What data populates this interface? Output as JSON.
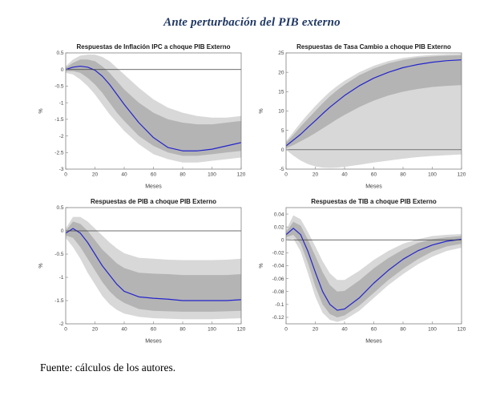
{
  "page": {
    "title": "Ante perturbación del PIB externo",
    "source_note": "Fuente: cálculos de los autores."
  },
  "colors": {
    "title_text": "#203864",
    "body_text": "#000000",
    "chart_title": "#1a1a1a",
    "tick_text": "#404040",
    "axis": "#808080",
    "zero_line": "#3c3c3c",
    "line": "#2424cc",
    "band_outer": "#d8d8d8",
    "band_inner": "#b4b4b4",
    "background": "#ffffff"
  },
  "chart_data": [
    {
      "type": "area",
      "name": "inflacion-ipc",
      "title": "Respuestas de Inflación IPC a choque PIB Externo",
      "xlabel": "Meses",
      "ylabel": "%",
      "xlim": [
        0,
        120
      ],
      "ylim": [
        -3,
        0.5
      ],
      "xticks": [
        0,
        20,
        40,
        60,
        80,
        100,
        120
      ],
      "yticks": [
        -3,
        -2.5,
        -2,
        -1.5,
        -1,
        -0.5,
        0,
        0.5
      ],
      "grid": false,
      "legend": false,
      "x": [
        0,
        5,
        10,
        15,
        20,
        25,
        30,
        35,
        40,
        50,
        60,
        70,
        80,
        90,
        100,
        110,
        120
      ],
      "series": [
        {
          "name": "banda-confianza-externa",
          "role": "outer_band",
          "upper": [
            0.1,
            0.3,
            0.42,
            0.45,
            0.45,
            0.38,
            0.25,
            0.05,
            -0.15,
            -0.55,
            -0.9,
            -1.15,
            -1.3,
            -1.4,
            -1.45,
            -1.45,
            -1.4
          ],
          "lower": [
            -0.1,
            -0.15,
            -0.3,
            -0.5,
            -0.75,
            -1.05,
            -1.35,
            -1.6,
            -1.85,
            -2.25,
            -2.55,
            -2.7,
            -2.8,
            -2.8,
            -2.75,
            -2.7,
            -2.65
          ]
        },
        {
          "name": "banda-confianza-interna",
          "role": "inner_band",
          "upper": [
            0.05,
            0.2,
            0.3,
            0.3,
            0.25,
            0.1,
            -0.1,
            -0.35,
            -0.6,
            -1.0,
            -1.3,
            -1.5,
            -1.6,
            -1.65,
            -1.65,
            -1.6,
            -1.55
          ],
          "lower": [
            -0.05,
            -0.05,
            -0.1,
            -0.25,
            -0.45,
            -0.7,
            -1.0,
            -1.3,
            -1.55,
            -2.0,
            -2.3,
            -2.5,
            -2.6,
            -2.6,
            -2.55,
            -2.5,
            -2.45
          ]
        },
        {
          "name": "respuesta-mediana",
          "role": "median",
          "values": [
            0,
            0.07,
            0.1,
            0.07,
            -0.02,
            -0.2,
            -0.45,
            -0.75,
            -1.05,
            -1.6,
            -2.05,
            -2.35,
            -2.45,
            -2.45,
            -2.4,
            -2.3,
            -2.2
          ]
        }
      ]
    },
    {
      "type": "area",
      "name": "tasa-cambio",
      "title": "Respuestas de Tasa Cambio a choque PIB Externo",
      "xlabel": "Meses",
      "ylabel": "%",
      "xlim": [
        0,
        120
      ],
      "ylim": [
        -5,
        25
      ],
      "xticks": [
        0,
        20,
        40,
        60,
        80,
        100,
        120
      ],
      "yticks": [
        -5,
        0,
        5,
        10,
        15,
        20,
        25
      ],
      "grid": false,
      "legend": false,
      "x": [
        0,
        5,
        10,
        15,
        20,
        25,
        30,
        35,
        40,
        50,
        60,
        70,
        80,
        90,
        100,
        110,
        120
      ],
      "series": [
        {
          "name": "banda-confianza-externa",
          "role": "outer_band",
          "upper": [
            2.2,
            4.6,
            7.0,
            9.2,
            11.3,
            13.2,
            15.0,
            16.5,
            17.8,
            20.0,
            21.7,
            22.9,
            23.7,
            24.2,
            24.5,
            24.7,
            24.8
          ],
          "lower": [
            0.0,
            -1.5,
            -2.8,
            -3.7,
            -4.3,
            -4.6,
            -4.7,
            -4.6,
            -4.4,
            -3.9,
            -3.3,
            -2.8,
            -2.3,
            -1.9,
            -1.6,
            -1.4,
            -1.2
          ]
        },
        {
          "name": "banda-confianza-interna",
          "role": "inner_band",
          "upper": [
            1.8,
            3.8,
            6.0,
            8.0,
            10.0,
            12.0,
            13.8,
            15.4,
            16.8,
            19.2,
            21.0,
            22.3,
            23.2,
            23.8,
            24.1,
            24.3,
            24.4
          ],
          "lower": [
            0.4,
            1.2,
            2.2,
            3.2,
            4.3,
            5.5,
            6.7,
            7.9,
            9.0,
            11.0,
            12.7,
            14.0,
            15.0,
            15.7,
            16.2,
            16.5,
            16.7
          ]
        },
        {
          "name": "respuesta-mediana",
          "role": "median",
          "values": [
            1.0,
            2.5,
            4.0,
            5.8,
            7.5,
            9.3,
            11.0,
            12.5,
            14.0,
            16.5,
            18.5,
            20.0,
            21.2,
            22.0,
            22.6,
            23.0,
            23.2
          ]
        }
      ]
    },
    {
      "type": "area",
      "name": "pib",
      "title": "Respuestas de PIB a choque PIB Externo",
      "xlabel": "Meses",
      "ylabel": "%",
      "xlim": [
        0,
        120
      ],
      "ylim": [
        -2,
        0.5
      ],
      "xticks": [
        0,
        20,
        40,
        60,
        80,
        100,
        120
      ],
      "yticks": [
        -2,
        -1.5,
        -1,
        -0.5,
        0,
        0.5
      ],
      "grid": false,
      "legend": false,
      "x": [
        0,
        5,
        10,
        15,
        20,
        25,
        30,
        35,
        40,
        50,
        60,
        70,
        80,
        90,
        100,
        110,
        120
      ],
      "series": [
        {
          "name": "banda-confianza-externa",
          "role": "outer_band",
          "upper": [
            0.05,
            0.3,
            0.3,
            0.2,
            0.05,
            -0.1,
            -0.25,
            -0.38,
            -0.48,
            -0.58,
            -0.6,
            -0.62,
            -0.63,
            -0.63,
            -0.63,
            -0.62,
            -0.6
          ],
          "lower": [
            -0.15,
            -0.35,
            -0.6,
            -0.9,
            -1.15,
            -1.4,
            -1.58,
            -1.7,
            -1.78,
            -1.85,
            -1.88,
            -1.89,
            -1.9,
            -1.9,
            -1.9,
            -1.89,
            -1.88
          ]
        },
        {
          "name": "banda-confianza-interna",
          "role": "inner_band",
          "upper": [
            0.0,
            0.2,
            0.15,
            0.0,
            -0.2,
            -0.4,
            -0.55,
            -0.7,
            -0.8,
            -0.9,
            -0.92,
            -0.93,
            -0.95,
            -0.95,
            -0.95,
            -0.95,
            -0.93
          ],
          "lower": [
            -0.1,
            -0.15,
            -0.35,
            -0.6,
            -0.85,
            -1.1,
            -1.3,
            -1.45,
            -1.55,
            -1.68,
            -1.72,
            -1.73,
            -1.74,
            -1.74,
            -1.74,
            -1.73,
            -1.72
          ]
        },
        {
          "name": "respuesta-mediana",
          "role": "median",
          "values": [
            -0.05,
            0.05,
            -0.05,
            -0.25,
            -0.5,
            -0.75,
            -0.95,
            -1.15,
            -1.3,
            -1.42,
            -1.45,
            -1.47,
            -1.5,
            -1.5,
            -1.5,
            -1.5,
            -1.48
          ]
        }
      ]
    },
    {
      "type": "area",
      "name": "tib",
      "title": "Respuestas de TIB a choque PIB Externo",
      "xlabel": "Meses",
      "ylabel": "%",
      "xlim": [
        0,
        120
      ],
      "ylim": [
        -0.13,
        0.05
      ],
      "xticks": [
        0,
        20,
        40,
        60,
        80,
        100,
        120
      ],
      "yticks": [
        -0.12,
        -0.1,
        -0.08,
        -0.06,
        -0.04,
        -0.02,
        0,
        0.02,
        0.04
      ],
      "grid": false,
      "legend": false,
      "x": [
        0,
        5,
        10,
        15,
        20,
        25,
        30,
        35,
        40,
        50,
        60,
        70,
        80,
        90,
        100,
        110,
        120
      ],
      "series": [
        {
          "name": "banda-confianza-externa",
          "role": "outer_band",
          "upper": [
            0.015,
            0.038,
            0.032,
            0.012,
            -0.01,
            -0.033,
            -0.052,
            -0.062,
            -0.062,
            -0.048,
            -0.031,
            -0.017,
            -0.006,
            0.001,
            0.006,
            0.008,
            0.009
          ],
          "lower": [
            0.0,
            0.002,
            -0.018,
            -0.052,
            -0.088,
            -0.113,
            -0.124,
            -0.127,
            -0.124,
            -0.11,
            -0.09,
            -0.07,
            -0.053,
            -0.038,
            -0.026,
            -0.017,
            -0.012
          ]
        },
        {
          "name": "banda-confianza-interna",
          "role": "inner_band",
          "upper": [
            0.012,
            0.028,
            0.022,
            0.0,
            -0.025,
            -0.05,
            -0.07,
            -0.08,
            -0.079,
            -0.063,
            -0.044,
            -0.028,
            -0.015,
            -0.005,
            0.001,
            0.004,
            0.006
          ],
          "lower": [
            0.004,
            0.008,
            -0.006,
            -0.036,
            -0.072,
            -0.1,
            -0.115,
            -0.12,
            -0.117,
            -0.102,
            -0.082,
            -0.062,
            -0.045,
            -0.03,
            -0.018,
            -0.01,
            -0.006
          ]
        },
        {
          "name": "respuesta-mediana",
          "role": "median",
          "values": [
            0.008,
            0.018,
            0.008,
            -0.018,
            -0.05,
            -0.08,
            -0.1,
            -0.109,
            -0.107,
            -0.09,
            -0.067,
            -0.047,
            -0.03,
            -0.017,
            -0.008,
            -0.002,
            0.001
          ]
        }
      ]
    }
  ]
}
